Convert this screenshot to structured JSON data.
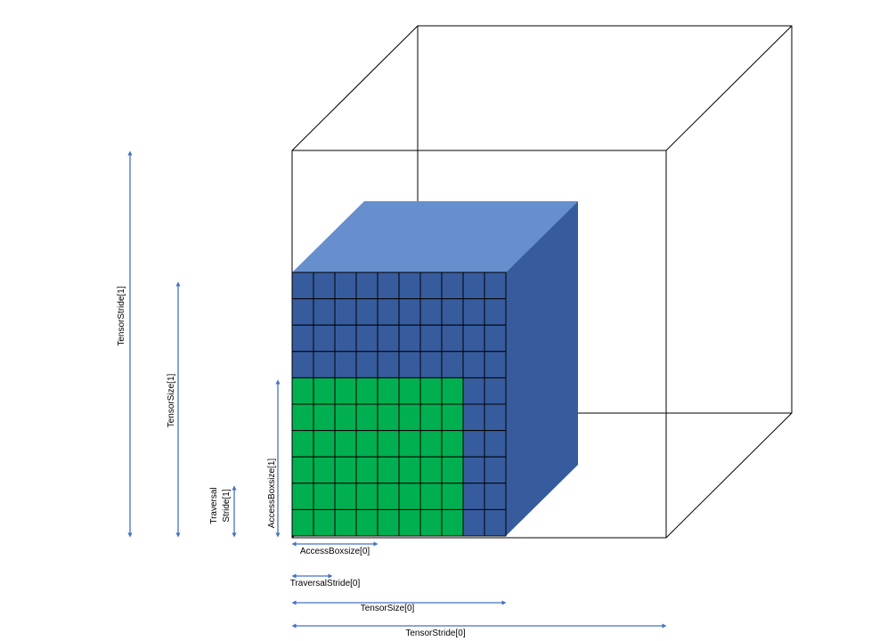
{
  "colors": {
    "arrow": "#4472C4",
    "front_blue": "#375C9E",
    "top_blue": "#678FCD",
    "side_blue": "#375C9E",
    "access_box": "#00B050",
    "outline": "#000000"
  },
  "grid": {
    "columns": 10,
    "rows": 10,
    "access_columns": 8,
    "access_rows": 6
  },
  "labels": {
    "tensor_stride_1": "TensorStride[1]",
    "tensor_size_1": "TensorSize[1]",
    "traversal_stride_1_line1": "Traversal",
    "traversal_stride_1_line2": "Stride[1]",
    "access_boxsize_1": "AccessBoxsize[1]",
    "access_boxsize_0": "AccessBoxsize[0]",
    "traversal_stride_0": "TraversalStride[0]",
    "tensor_size_0": "TensorSize[0]",
    "tensor_stride_0": "TensorStride[0]"
  }
}
